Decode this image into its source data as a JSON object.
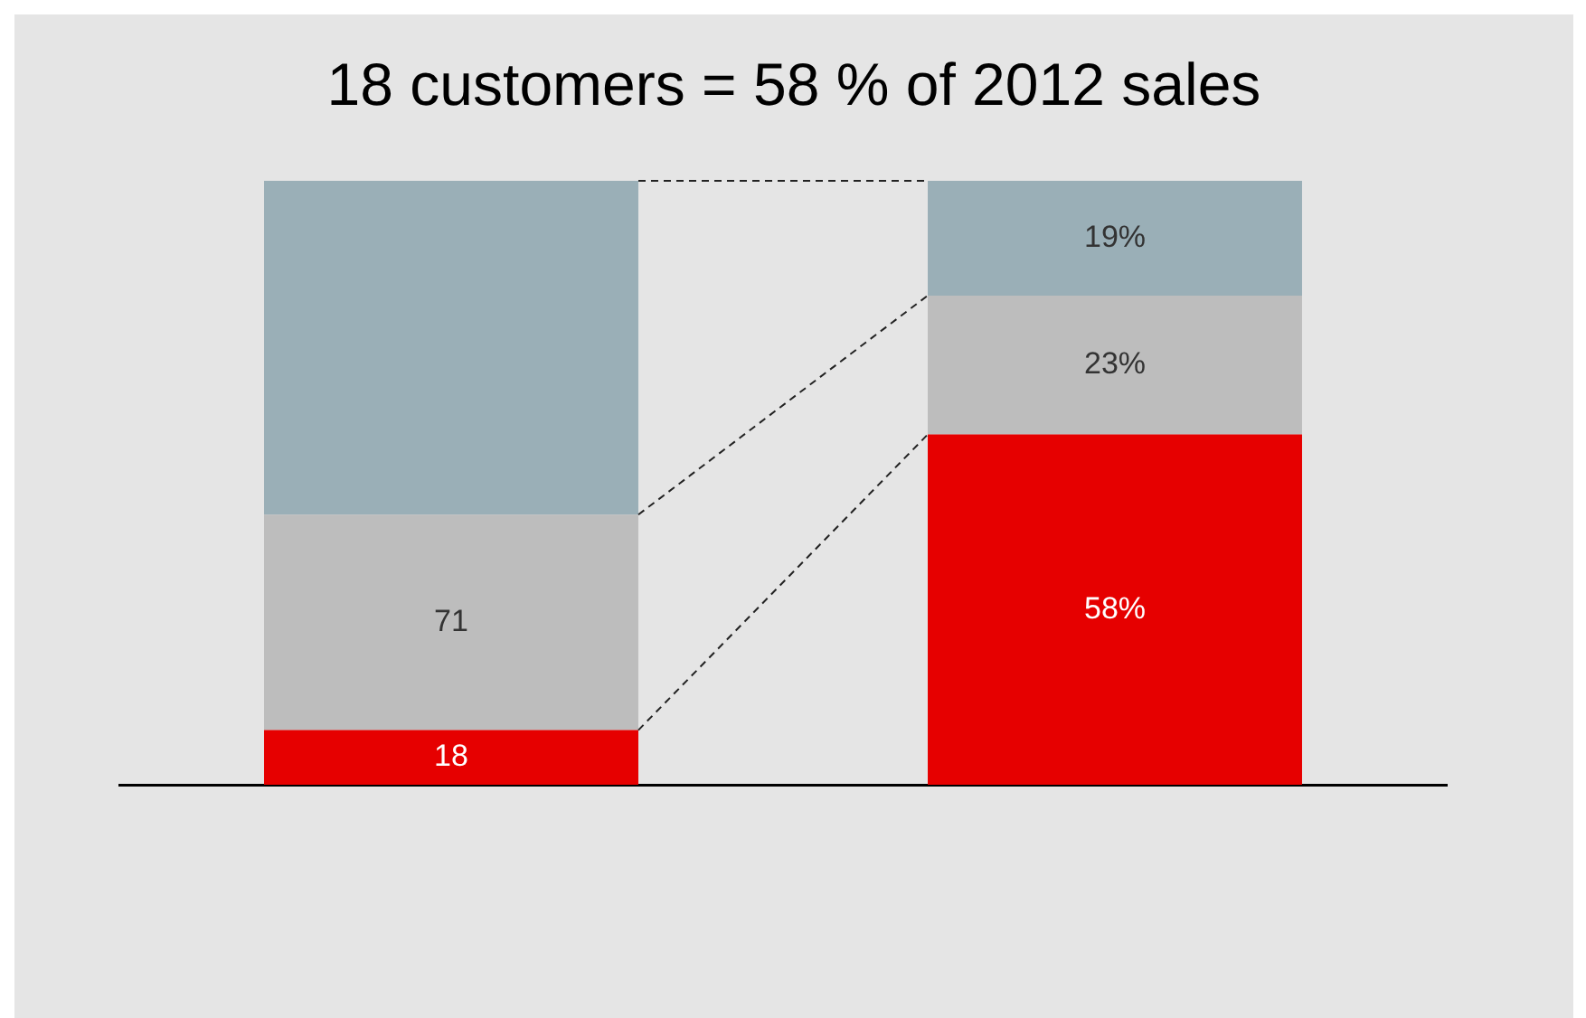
{
  "chart_data": [
    {
      "type": "bar",
      "title": "18 customers = 58 % of 2012 sales",
      "categories": [
        null
      ],
      "stacked": true,
      "grid": false,
      "legend": false,
      "tick_labels": false,
      "ylim": [
        0,
        199
      ],
      "series": [
        {
          "color": "#e60000",
          "values": [
            18
          ],
          "value_labels": [
            "18"
          ]
        },
        {
          "color": "#bdbdbd",
          "values": [
            71
          ],
          "value_labels": [
            "71"
          ]
        },
        {
          "color": "#9aafb7",
          "values": [
            110
          ],
          "value_labels": [
            null
          ]
        }
      ]
    },
    {
      "type": "bar",
      "categories": [
        null
      ],
      "stacked": true,
      "grid": false,
      "legend": false,
      "tick_labels": false,
      "ylim": [
        0,
        100
      ],
      "series": [
        {
          "color": "#e60000",
          "values": [
            58
          ],
          "value_labels": [
            "58%"
          ]
        },
        {
          "color": "#bdbdbd",
          "values": [
            23
          ],
          "value_labels": [
            "23%"
          ]
        },
        {
          "color": "#9aafb7",
          "values": [
            19
          ],
          "value_labels": [
            "19%"
          ]
        }
      ]
    }
  ]
}
